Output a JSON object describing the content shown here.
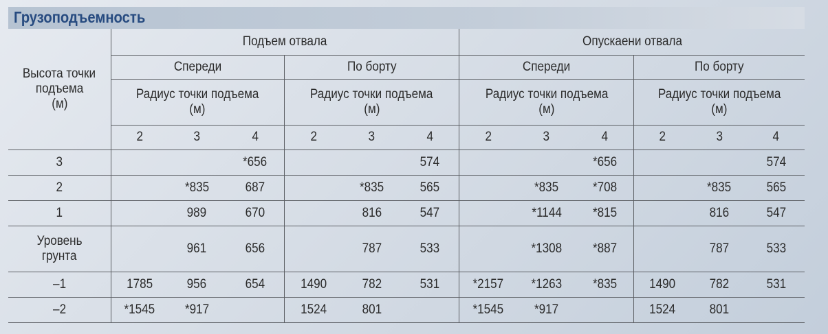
{
  "title": "Грузоподъемность",
  "header": {
    "row_label": [
      "Высота точки",
      "подъема",
      "(м)"
    ],
    "groups": [
      {
        "label": "Подъем отвала",
        "sides": [
          "Спереди",
          "По борту"
        ]
      },
      {
        "label": "Опускаени отвала",
        "sides": [
          "Спереди",
          "По борту"
        ]
      }
    ],
    "radius_label": [
      "Радиус точки подъема",
      "(м)"
    ],
    "radii": [
      "2",
      "3",
      "4"
    ]
  },
  "rows": [
    {
      "height": [
        "3"
      ],
      "values": [
        "",
        "",
        "*656",
        "",
        "",
        "574",
        "",
        "",
        "*656",
        "",
        "",
        "574"
      ]
    },
    {
      "height": [
        "2"
      ],
      "values": [
        "",
        "*835",
        "687",
        "",
        "*835",
        "565",
        "",
        "*835",
        "*708",
        "",
        "*835",
        "565"
      ]
    },
    {
      "height": [
        "1"
      ],
      "values": [
        "",
        "989",
        "670",
        "",
        "816",
        "547",
        "",
        "*1144",
        "*815",
        "",
        "816",
        "547"
      ]
    },
    {
      "height": [
        "Уровень",
        "грунта"
      ],
      "values": [
        "",
        "961",
        "656",
        "",
        "787",
        "533",
        "",
        "*1308",
        "*887",
        "",
        "787",
        "533"
      ]
    },
    {
      "height": [
        "–1"
      ],
      "values": [
        "1785",
        "956",
        "654",
        "1490",
        "782",
        "531",
        "*2157",
        "*1263",
        "*835",
        "1490",
        "782",
        "531"
      ]
    },
    {
      "height": [
        "–2"
      ],
      "values": [
        "*1545",
        "*917",
        "",
        "1524",
        "801",
        "",
        "*1545",
        "*917",
        "",
        "1524",
        "801",
        ""
      ]
    }
  ]
}
